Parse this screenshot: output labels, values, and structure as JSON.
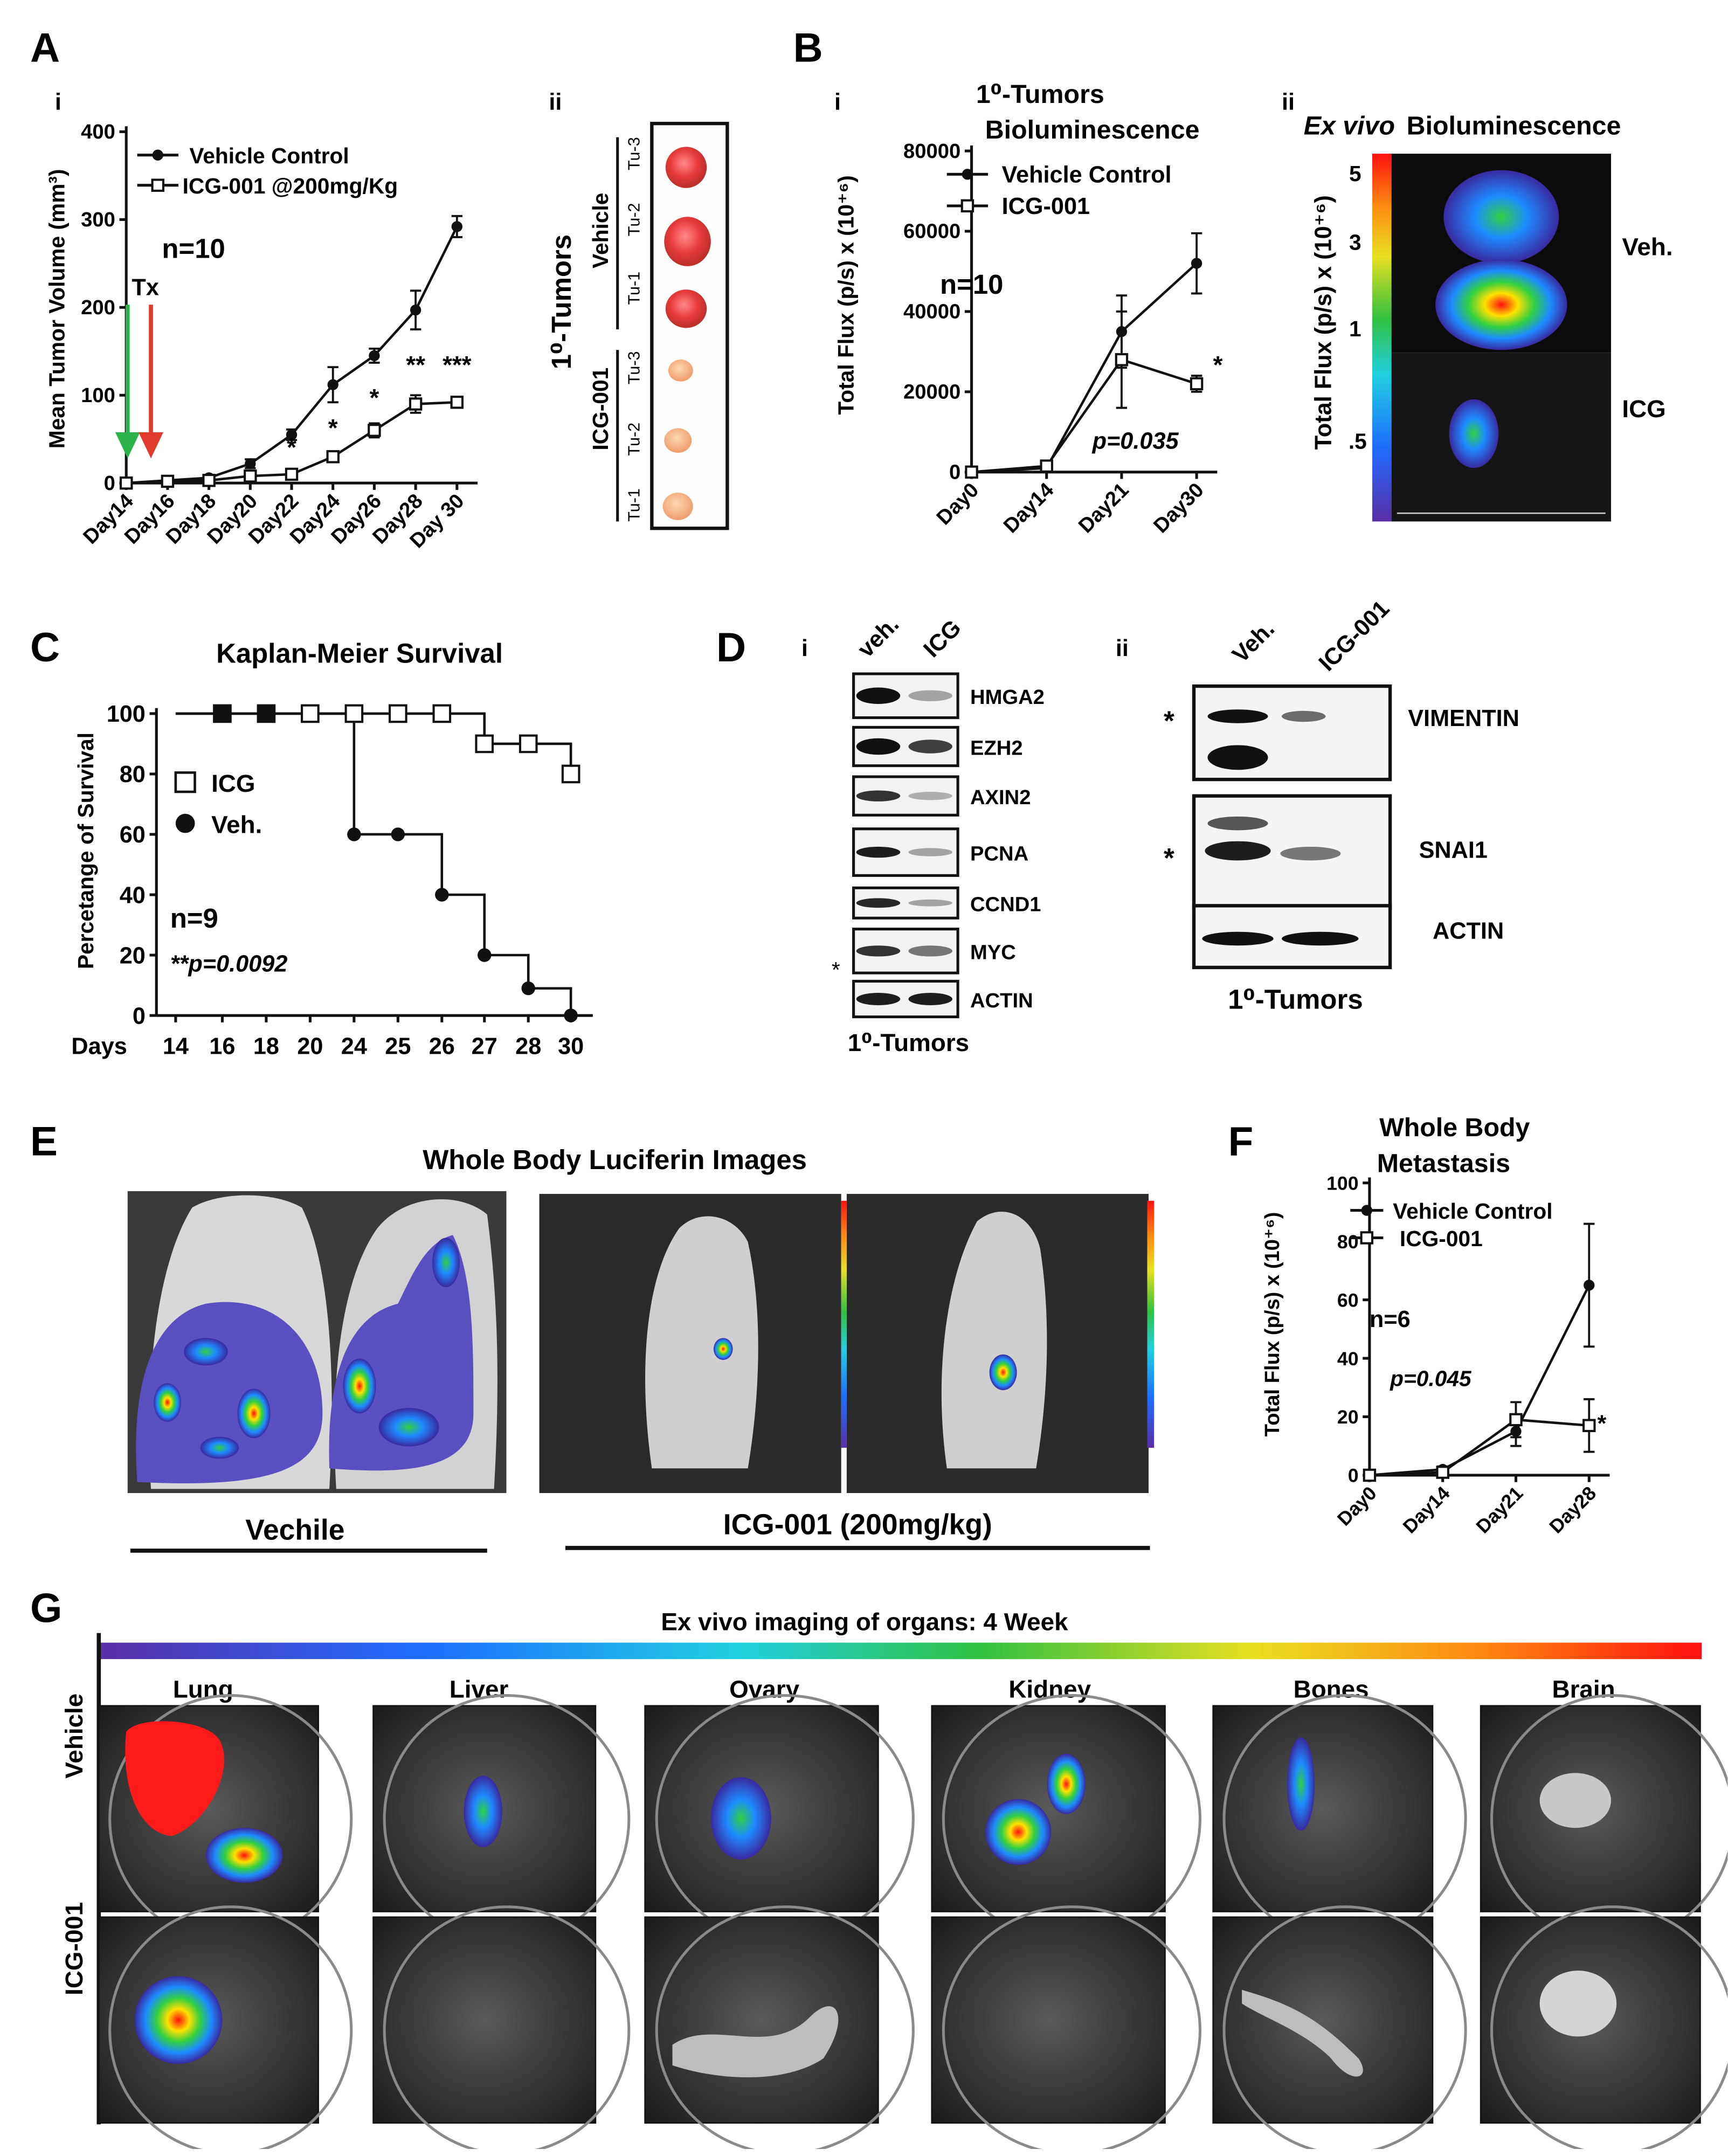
{
  "panels": {
    "A": {
      "letter": "A",
      "i": {
        "label": "i",
        "ylabel": "Mean Tumor Volume (mm³)",
        "n_text": "n=10",
        "tx_label": "Tx",
        "legend": [
          "Vehicle Control",
          "ICG-001 @200mg/Kg"
        ],
        "sig_marks": [
          "*",
          "*",
          "*",
          "**",
          "***"
        ]
      },
      "ii": {
        "label": "ii",
        "side_label": "1⁰-Tumors",
        "groups": [
          "Vehicle",
          "ICG-001"
        ],
        "tumor_labels": [
          "Tu-3",
          "Tu-2",
          "Tu-1",
          "Tu-3",
          "Tu-2",
          "Tu-1"
        ]
      }
    },
    "B": {
      "letter": "B",
      "i": {
        "label": "i",
        "title_line1": "1⁰-Tumors",
        "title_line2": "Bioluminescence",
        "ylabel": "Total Flux (p/s) x (10⁺⁶)",
        "n_text": "n=10",
        "p_text": "p=0.035",
        "sig": "*",
        "legend": [
          "Vehicle Control",
          "ICG-001"
        ]
      },
      "ii": {
        "label": "ii",
        "title_italic": "Ex vivo",
        "title_rest": "Bioluminescence",
        "ylabel": "Total Flux (p/s) x (10⁺⁶)",
        "scale_ticks": [
          "5",
          "3",
          "1",
          ".5"
        ],
        "row_labels": [
          "Veh.",
          "ICG"
        ]
      }
    },
    "C": {
      "letter": "C",
      "title": "Kaplan-Meier Survival",
      "ylabel": "Percetange of Survival",
      "xlabel_prefix": "Days",
      "legend": [
        "ICG",
        "Veh."
      ],
      "n_text": "n=9",
      "p_text": "**p=0.0092"
    },
    "D": {
      "letter": "D",
      "i": {
        "label": "i",
        "lanes": [
          "veh.",
          "ICG"
        ],
        "proteins": [
          "HMGA2",
          "EZH2",
          "AXIN2",
          "PCNA",
          "CCND1",
          "MYC",
          "ACTIN"
        ],
        "star": "*",
        "caption": "1⁰-Tumors"
      },
      "ii": {
        "label": "ii",
        "lanes": [
          "Veh.",
          "ICG-001"
        ],
        "proteins": [
          "VIMENTIN",
          "SNAI1",
          "ACTIN"
        ],
        "star": "*",
        "caption": "1⁰-Tumors"
      }
    },
    "E": {
      "letter": "E",
      "title": "Whole Body  Luciferin Images",
      "groups": [
        "Vechile",
        "ICG-001 (200mg/kg)"
      ]
    },
    "F": {
      "letter": "F",
      "title_line1": "Whole Body",
      "title_line2": "Metastasis",
      "ylabel": "Total Flux (p/s) x (10⁺⁶)",
      "legend": [
        "Vehicle Control",
        "ICG-001"
      ],
      "n_text": "n=6",
      "p_text": "p=0.045",
      "sig": "*"
    },
    "G": {
      "letter": "G",
      "title": "Ex vivo imaging of organs: 4 Week",
      "organs": [
        "Lung",
        "Liver",
        "Ovary",
        "Kidney",
        "Bones",
        "Brain"
      ],
      "rows": [
        "Vehicle",
        "ICG-001"
      ]
    }
  },
  "chart_data": [
    {
      "id": "A-i",
      "type": "line",
      "title": "",
      "xlabel": "",
      "ylabel": "Mean Tumor Volume (mm³)",
      "categories": [
        "Day14",
        "Day16",
        "Day18",
        "Day20",
        "Day22",
        "Day24",
        "Day26",
        "Day28",
        "Day 30"
      ],
      "ylim": [
        0,
        400
      ],
      "yticks": [
        0,
        100,
        200,
        300,
        400
      ],
      "series": [
        {
          "name": "Vehicle Control",
          "marker": "circle",
          "values": [
            0,
            3,
            6,
            22,
            55,
            112,
            145,
            197,
            292
          ],
          "errors": [
            1,
            1,
            2,
            5,
            6,
            20,
            8,
            22,
            12
          ]
        },
        {
          "name": "ICG-001 @200mg/Kg",
          "marker": "square",
          "values": [
            0,
            2,
            3,
            8,
            10,
            30,
            60,
            90,
            92
          ],
          "errors": [
            1,
            1,
            1,
            3,
            3,
            5,
            8,
            10,
            5
          ]
        }
      ],
      "annotations": [
        {
          "x": "Day22",
          "text": "*"
        },
        {
          "x": "Day24",
          "text": "*"
        },
        {
          "x": "Day26",
          "text": "*"
        },
        {
          "x": "Day28",
          "text": "**"
        },
        {
          "x": "Day 30",
          "text": "***"
        }
      ]
    },
    {
      "id": "B-i",
      "type": "line",
      "title": "1⁰-Tumors Bioluminescence",
      "ylabel": "Total Flux (p/s) x (10⁺⁶)",
      "categories": [
        "Day0",
        "Day14",
        "Day21",
        "Day30"
      ],
      "ylim": [
        0,
        80000
      ],
      "yticks": [
        0,
        20000,
        40000,
        60000,
        80000
      ],
      "series": [
        {
          "name": "Vehicle Control",
          "marker": "circle",
          "values": [
            0,
            1000,
            35000,
            52000
          ],
          "errors": [
            0,
            500,
            9000,
            7500
          ]
        },
        {
          "name": "ICG-001",
          "marker": "square",
          "values": [
            0,
            1500,
            28000,
            22000
          ],
          "errors": [
            0,
            500,
            12000,
            2000
          ]
        }
      ]
    },
    {
      "id": "C",
      "type": "line",
      "title": "Kaplan-Meier Survival",
      "xlabel": "Days",
      "ylabel": "Percetange of Survival",
      "categories": [
        "14",
        "16",
        "18",
        "20",
        "24",
        "25",
        "26",
        "27",
        "28",
        "30"
      ],
      "ylim": [
        0,
        100
      ],
      "yticks": [
        0,
        20,
        40,
        60,
        80,
        100
      ],
      "series": [
        {
          "name": "ICG",
          "marker": "open-square",
          "values": [
            100,
            100,
            100,
            100,
            100,
            100,
            100,
            90,
            90,
            80
          ]
        },
        {
          "name": "Veh.",
          "marker": "filled",
          "values": [
            100,
            100,
            100,
            100,
            60,
            60,
            40,
            20,
            9,
            0
          ]
        }
      ]
    },
    {
      "id": "F",
      "type": "line",
      "title": "Whole Body Metastasis",
      "ylabel": "Total Flux (p/s) x (10⁺⁶)",
      "categories": [
        "Day0",
        "Day14",
        "Day21",
        "Day28"
      ],
      "ylim": [
        0,
        100
      ],
      "yticks": [
        0,
        20,
        40,
        60,
        80,
        100
      ],
      "series": [
        {
          "name": "Vehicle Control",
          "marker": "circle",
          "values": [
            0,
            2,
            15,
            65
          ],
          "errors": [
            0,
            1,
            5,
            21
          ]
        },
        {
          "name": "ICG-001",
          "marker": "square",
          "values": [
            0,
            1,
            19,
            17
          ],
          "errors": [
            0,
            1,
            6,
            9
          ]
        }
      ]
    }
  ]
}
